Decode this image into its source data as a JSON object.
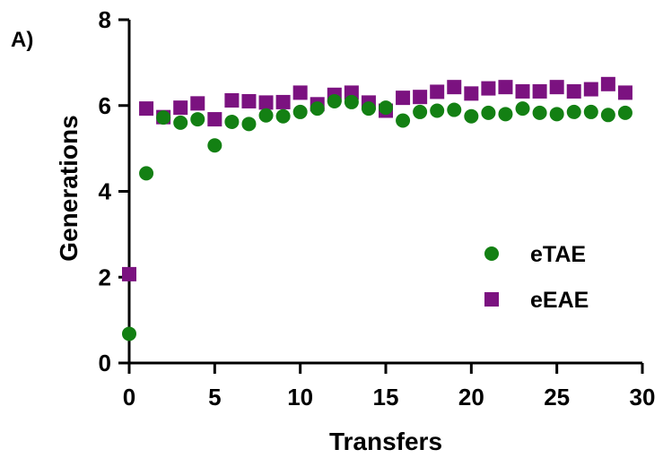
{
  "panel_label": "A)",
  "chart_data": {
    "type": "scatter",
    "xlabel": "Transfers",
    "ylabel": "Generations",
    "xlim": [
      0,
      30
    ],
    "ylim": [
      0,
      8
    ],
    "xticks": [
      0,
      5,
      10,
      15,
      20,
      25,
      30
    ],
    "yticks": [
      0,
      2,
      4,
      6,
      8
    ],
    "grid": false,
    "legend_position": "right-middle",
    "series": [
      {
        "name": "eTAE",
        "marker": "circle",
        "color": "#138013",
        "points": [
          [
            0,
            0.68
          ],
          [
            1,
            4.42
          ],
          [
            2,
            5.72
          ],
          [
            3,
            5.6
          ],
          [
            4,
            5.68
          ],
          [
            5,
            5.07
          ],
          [
            6,
            5.62
          ],
          [
            7,
            5.57
          ],
          [
            8,
            5.77
          ],
          [
            9,
            5.75
          ],
          [
            10,
            5.85
          ],
          [
            11,
            5.93
          ],
          [
            12,
            6.1
          ],
          [
            13,
            6.08
          ],
          [
            14,
            5.93
          ],
          [
            15,
            5.95
          ],
          [
            16,
            5.65
          ],
          [
            17,
            5.85
          ],
          [
            18,
            5.88
          ],
          [
            19,
            5.9
          ],
          [
            20,
            5.75
          ],
          [
            21,
            5.83
          ],
          [
            22,
            5.8
          ],
          [
            23,
            5.93
          ],
          [
            24,
            5.83
          ],
          [
            25,
            5.8
          ],
          [
            26,
            5.85
          ],
          [
            27,
            5.85
          ],
          [
            28,
            5.78
          ],
          [
            29,
            5.83
          ]
        ]
      },
      {
        "name": "eEAE",
        "marker": "square",
        "color": "#7b1280",
        "points": [
          [
            0,
            2.07
          ],
          [
            1,
            5.93
          ],
          [
            2,
            5.73
          ],
          [
            3,
            5.95
          ],
          [
            4,
            6.05
          ],
          [
            5,
            5.68
          ],
          [
            6,
            6.12
          ],
          [
            7,
            6.1
          ],
          [
            8,
            6.07
          ],
          [
            9,
            6.08
          ],
          [
            10,
            6.3
          ],
          [
            11,
            6.03
          ],
          [
            12,
            6.25
          ],
          [
            13,
            6.3
          ],
          [
            14,
            6.07
          ],
          [
            15,
            5.88
          ],
          [
            16,
            6.18
          ],
          [
            17,
            6.2
          ],
          [
            18,
            6.32
          ],
          [
            19,
            6.43
          ],
          [
            20,
            6.28
          ],
          [
            21,
            6.4
          ],
          [
            22,
            6.43
          ],
          [
            23,
            6.33
          ],
          [
            24,
            6.33
          ],
          [
            25,
            6.43
          ],
          [
            26,
            6.33
          ],
          [
            27,
            6.38
          ],
          [
            28,
            6.5
          ],
          [
            29,
            6.3
          ]
        ]
      }
    ]
  }
}
